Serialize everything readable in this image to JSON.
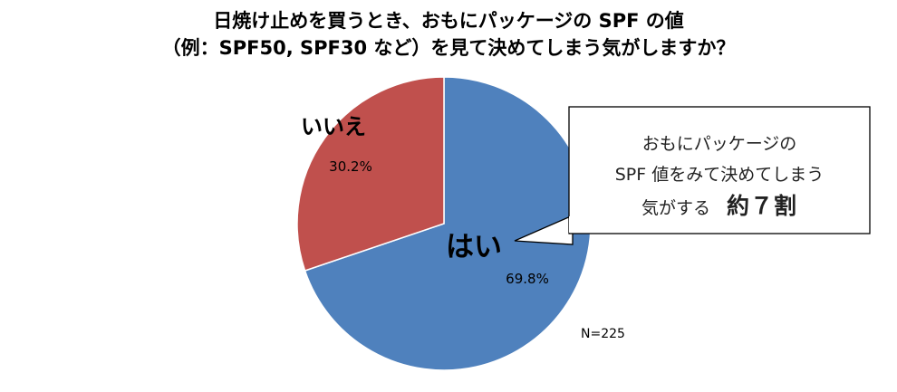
{
  "title": {
    "line1": "日焼け止めを買うとき、おもにパッケージの SPF の値",
    "line2": "（例：SPF50, SPF30 など）を見て決めてしまう気がしますか？"
  },
  "chart_data": {
    "type": "pie",
    "slices": [
      {
        "label": "はい",
        "value": 69.8,
        "display": "69.8%",
        "color": "#4F81BD"
      },
      {
        "label": "いいえ",
        "value": 30.2,
        "display": "30.2%",
        "color": "#C0504D"
      }
    ],
    "start_angle_deg": 0,
    "direction": "clockwise"
  },
  "callout": {
    "line1": "おもにパッケージの",
    "line2": "SPF 値をみて決めてしまう",
    "line3_prefix": "気がする",
    "line3_emphasis": "約７割"
  },
  "sample_size": "N=225"
}
